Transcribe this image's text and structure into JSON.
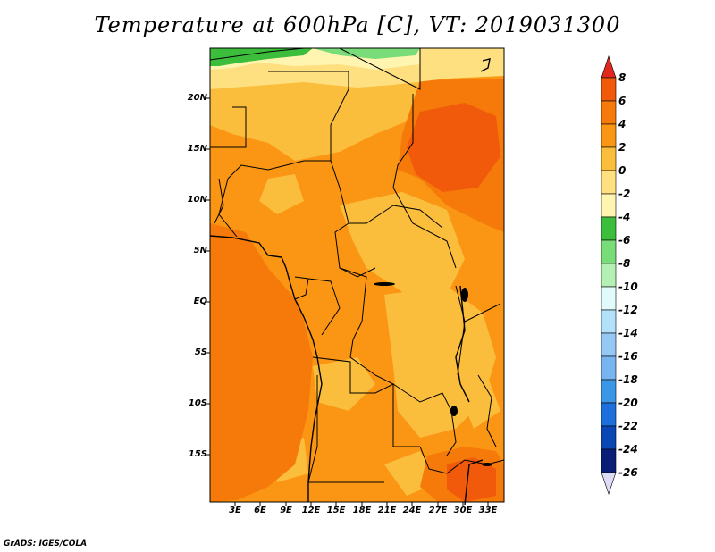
{
  "title": "Temperature at 600hPa [C], VT: 2019031300",
  "credit": "GrADS: IGES/COLA",
  "lat_labels": [
    "20N",
    "15N",
    "10N",
    "5N",
    "EQ",
    "5S",
    "10S",
    "15S"
  ],
  "lon_labels": [
    "3E",
    "6E",
    "9E",
    "12E",
    "15E",
    "18E",
    "21E",
    "24E",
    "27E",
    "30E",
    "33E"
  ],
  "colorbar": {
    "labels": [
      "8",
      "6",
      "4",
      "2",
      "0",
      "-2",
      "-4",
      "-6",
      "-8",
      "-10",
      "-12",
      "-14",
      "-16",
      "-18",
      "-20",
      "-22",
      "-24",
      "-26"
    ],
    "colors_top_to_bottom": [
      "#e0281e",
      "#f05a0a",
      "#f57a0a",
      "#fa9614",
      "#fbbe3c",
      "#fee080",
      "#fff5b0",
      "#3cbe3c",
      "#78dc78",
      "#b4f0b4",
      "#e1fafa",
      "#b4e1fa",
      "#96c8f5",
      "#78b4f0",
      "#3c96e6",
      "#1e6edc",
      "#0a46b4",
      "#0a1e78",
      "#dcdcf5"
    ]
  },
  "map": {
    "lat_range": [
      -19.5,
      24.5
    ],
    "lon_range": [
      0,
      35
    ],
    "field_colors": {
      "very_warm": "#f05a0a",
      "warm": "#f57a0a",
      "mild": "#fa9614",
      "cool": "#fbbe3c",
      "cold": "#fee080",
      "colder": "#fff5b0",
      "green": "#3cbe3c",
      "light_green": "#78dc78"
    }
  }
}
